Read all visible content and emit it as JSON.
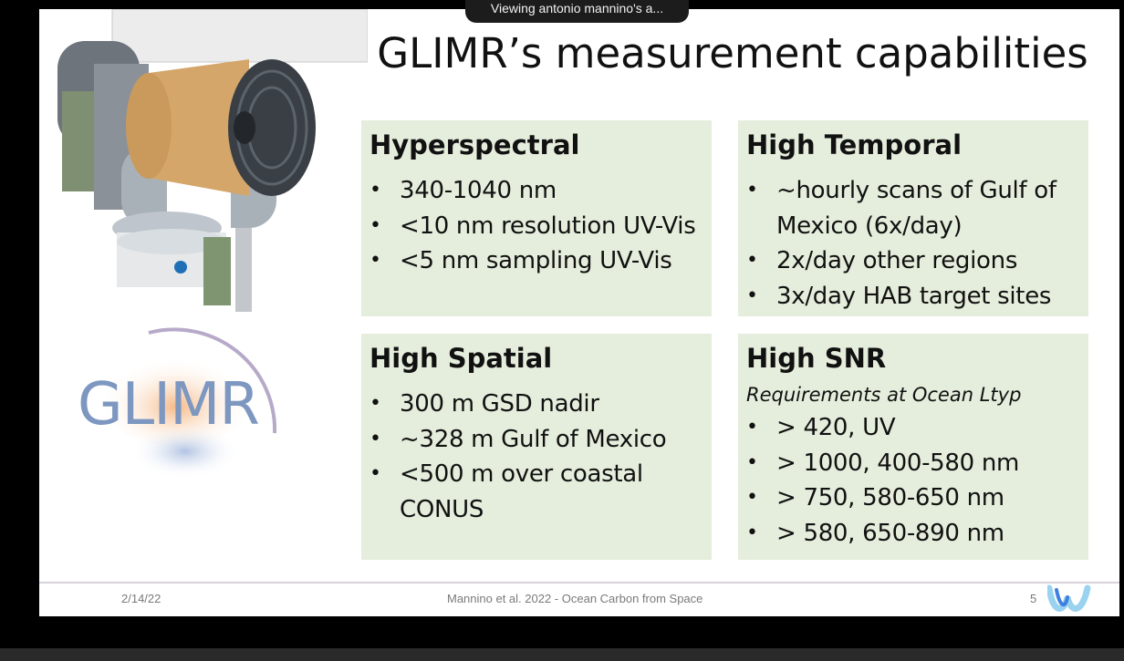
{
  "share_banner": "Viewing antonio mannino's a...",
  "slide": {
    "title": "GLIMR’s measurement capabilities",
    "logo_text": "GLIMR",
    "boxes": [
      {
        "heading": "Hyperspectral",
        "items": [
          "340-1040 nm",
          "<10 nm resolution UV-Vis",
          "<5 nm sampling UV-Vis"
        ]
      },
      {
        "heading": "High Temporal",
        "items": [
          "~hourly scans of Gulf of Mexico (6x/day)",
          "2x/day other regions",
          "3x/day HAB target sites"
        ]
      },
      {
        "heading": "High Spatial",
        "items": [
          "300 m GSD nadir",
          "~328 m Gulf of Mexico",
          "<500 m over coastal CONUS"
        ]
      },
      {
        "heading": "High SNR",
        "subheading": "Requirements at Ocean Ltyp",
        "items": [
          "> 420, UV",
          "> 1000, 400-580 nm",
          "> 750, 580-650 nm",
          "> 580, 650-890 nm"
        ]
      }
    ],
    "footer": {
      "date": "2/14/22",
      "center": "Mannino et al. 2022 - Ocean Carbon from Space",
      "page": "5"
    }
  },
  "colors": {
    "box_bg": "#e5eedc",
    "logo_blue": "#7d97c0",
    "instrument_tan": "#d4a66a"
  }
}
